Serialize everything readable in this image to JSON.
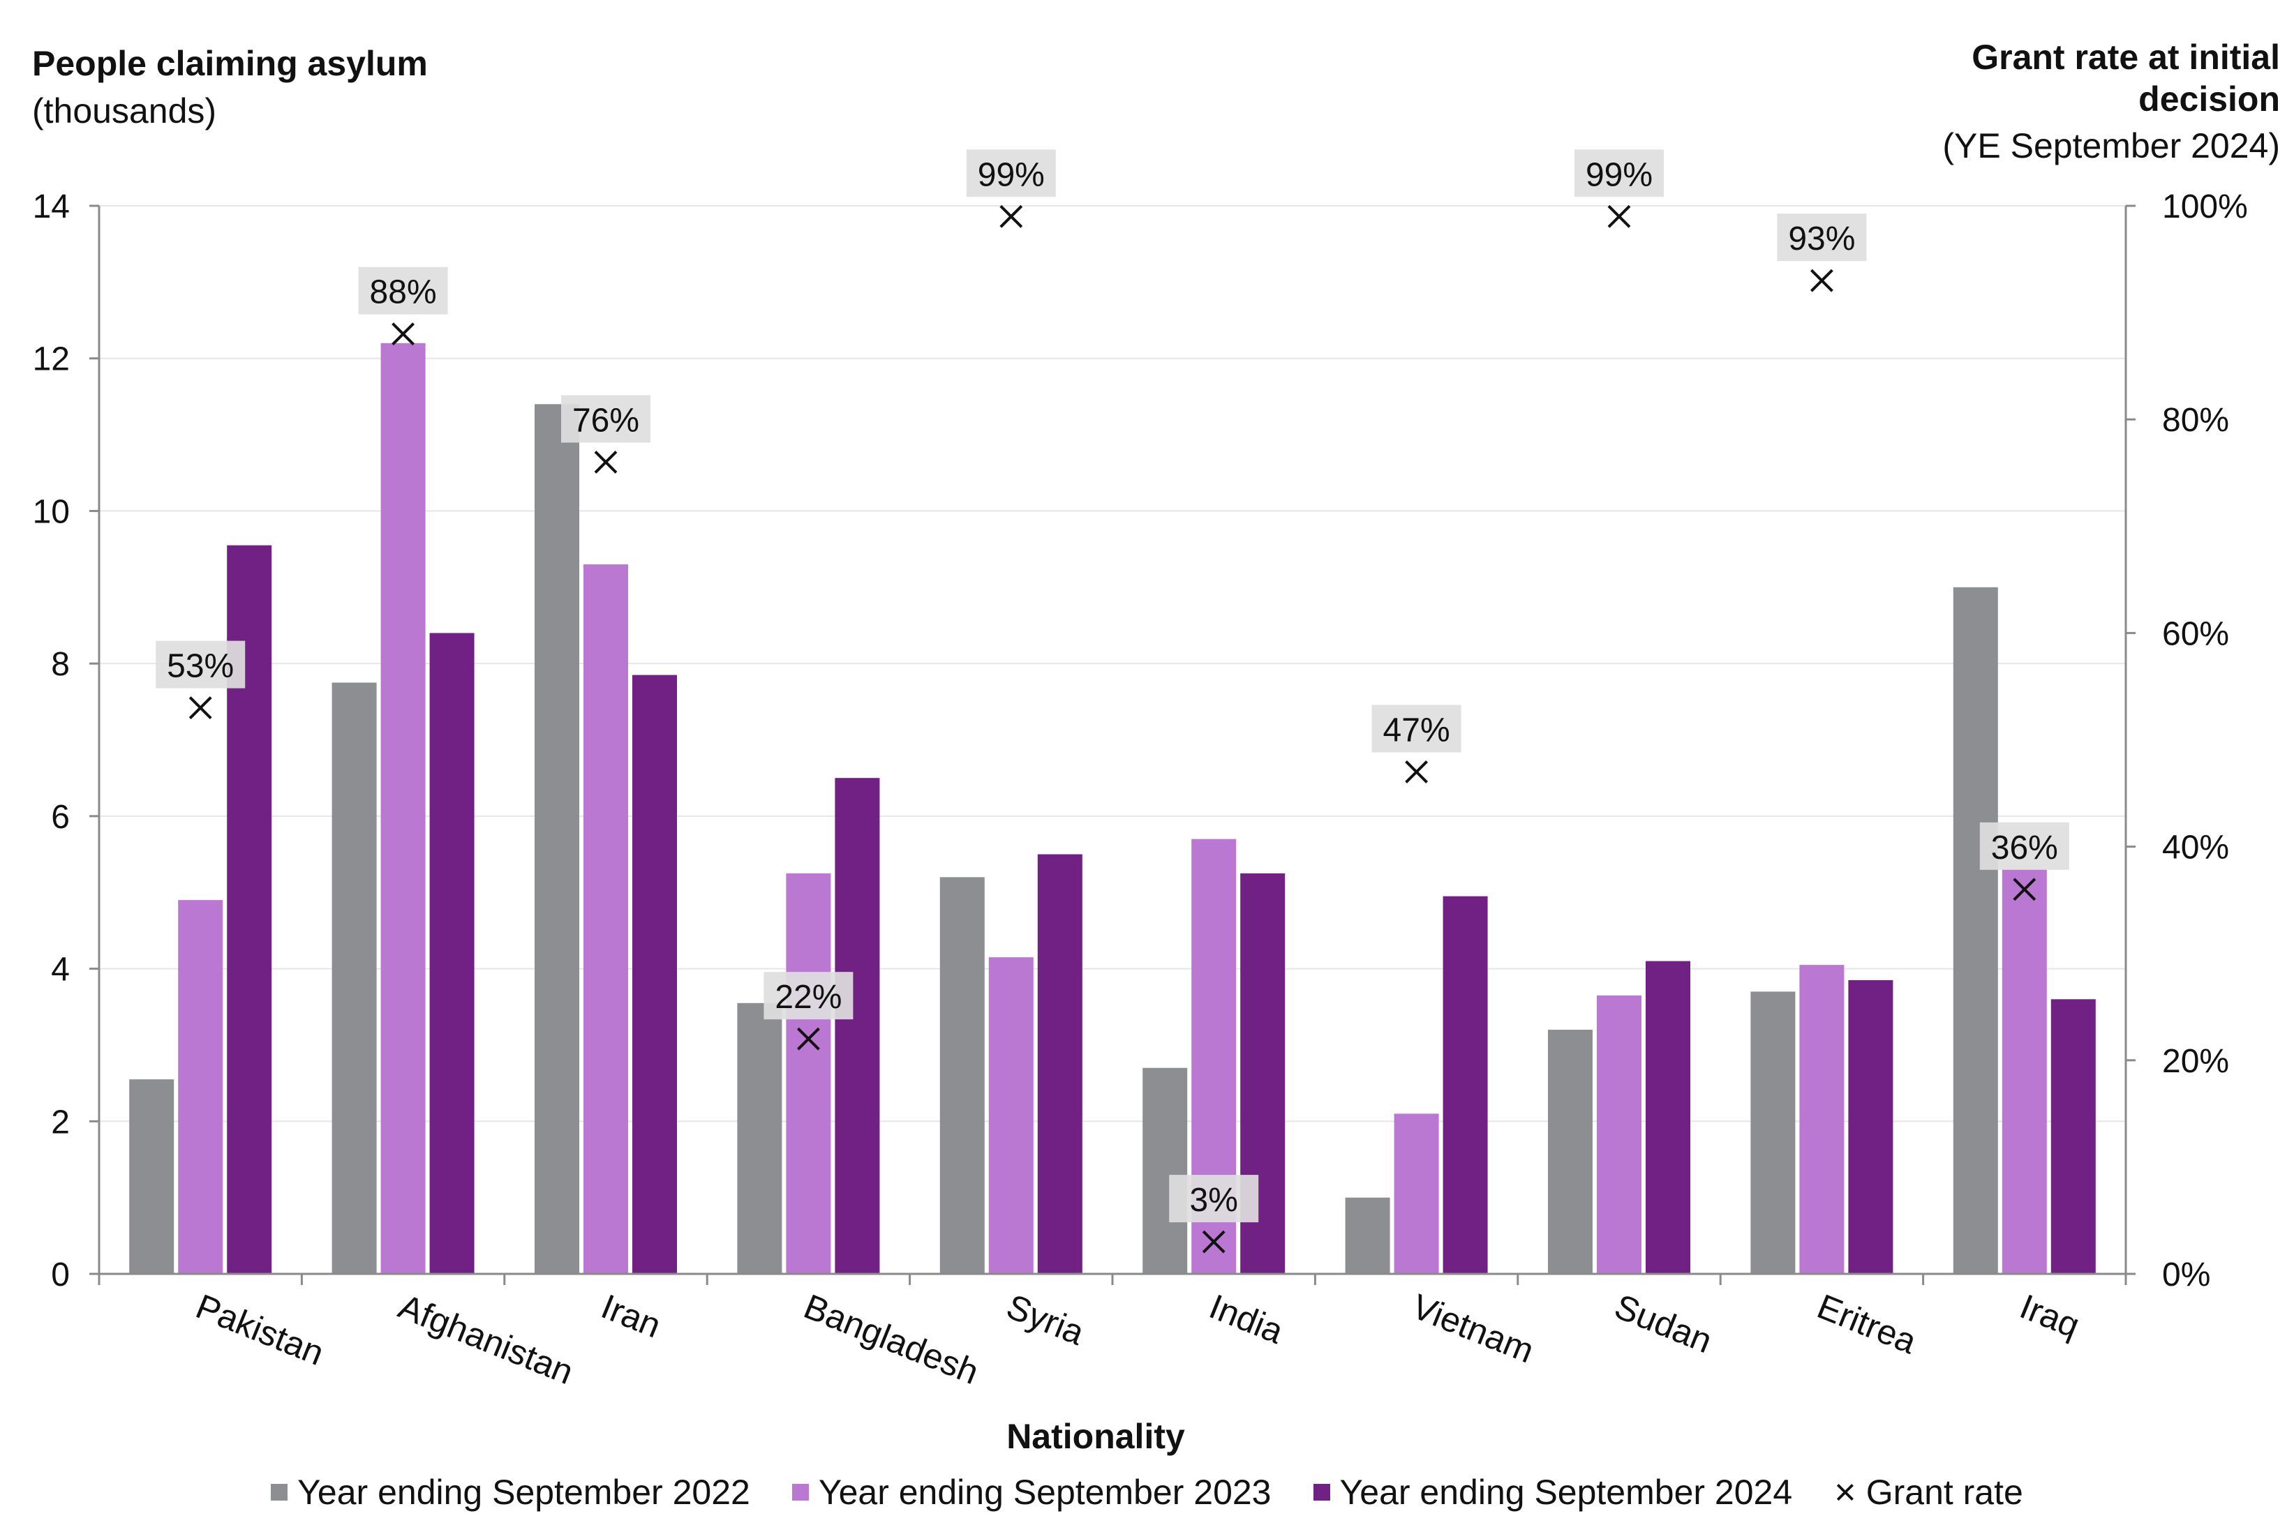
{
  "left_axis": {
    "title": "People claiming asylum",
    "subtitle": "(thousands)"
  },
  "right_axis": {
    "title": "Grant rate at initial decision",
    "subtitle": "(YE September 2024)"
  },
  "legend": [
    {
      "label": "Year ending September 2022",
      "color": "#8d8e92"
    },
    {
      "label": "Year ending September 2023",
      "color": "#bb78d3"
    },
    {
      "label": "Year ending September 2024",
      "color": "#712183"
    },
    {
      "label": "Grant rate",
      "icon": "x-mark-icon"
    }
  ],
  "chart_data": {
    "type": "bar",
    "xlabel": "Nationality",
    "ylabel": "People claiming asylum (thousands)",
    "ylim": [
      0,
      14
    ],
    "yticks": [
      "0",
      "2",
      "4",
      "6",
      "8",
      "10",
      "12",
      "14"
    ],
    "y2label": "Grant rate at initial decision (YE September 2024)",
    "y2lim": [
      0,
      100
    ],
    "y2ticks": [
      "0%",
      "20%",
      "40%",
      "60%",
      "80%",
      "100%"
    ],
    "categories": [
      "Pakistan",
      "Afghanistan",
      "Iran",
      "Bangladesh",
      "Syria",
      "India",
      "Vietnam",
      "Sudan",
      "Eritrea",
      "Iraq"
    ],
    "series": [
      {
        "name": "Year ending September 2022",
        "color": "#8d8e92",
        "values": [
          2.55,
          7.75,
          11.4,
          3.55,
          5.2,
          2.7,
          1.0,
          3.2,
          3.7,
          9.0
        ]
      },
      {
        "name": "Year ending September 2023",
        "color": "#bb78d3",
        "values": [
          4.9,
          12.2,
          9.3,
          5.25,
          4.15,
          5.7,
          2.1,
          3.65,
          4.05,
          5.3
        ]
      },
      {
        "name": "Year ending September 2024",
        "color": "#712183",
        "values": [
          9.55,
          8.4,
          7.85,
          6.5,
          5.5,
          5.25,
          4.95,
          4.1,
          3.85,
          3.6
        ]
      }
    ],
    "grant_rate": {
      "name": "Grant rate",
      "values": [
        53,
        88,
        76,
        22,
        99,
        3,
        47,
        99,
        93,
        36
      ],
      "labels": [
        "53%",
        "88%",
        "76%",
        "22%",
        "99%",
        "3%",
        "47%",
        "99%",
        "93%",
        "36%"
      ]
    },
    "grid": true,
    "legend_position": "bottom"
  }
}
